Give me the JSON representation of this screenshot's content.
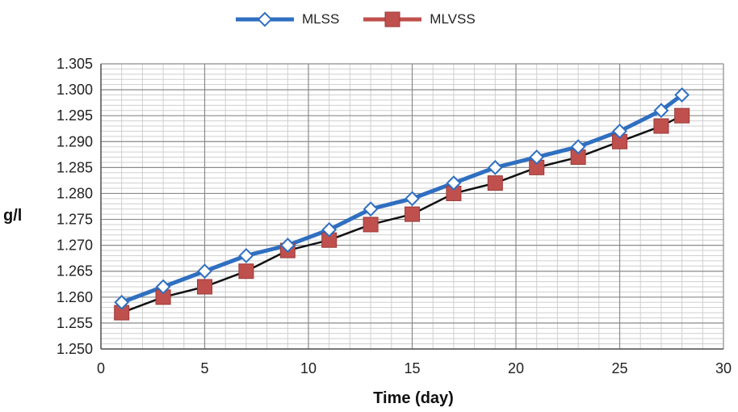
{
  "chart_data": {
    "type": "line",
    "xlabel": "Time (day)",
    "ylabel": "g/l",
    "xlim": [
      0,
      30
    ],
    "ylim": [
      1.25,
      1.305
    ],
    "xticks": [
      0,
      5,
      10,
      15,
      20,
      25,
      30
    ],
    "yticks": [
      1.25,
      1.255,
      1.26,
      1.265,
      1.27,
      1.275,
      1.28,
      1.285,
      1.29,
      1.295,
      1.3,
      1.305
    ],
    "ytick_labels": [
      "1.250",
      "1.255",
      "1.260",
      "1.265",
      "1.270",
      "1.275",
      "1.280",
      "1.285",
      "1.290",
      "1.295",
      "1.300",
      "1.305"
    ],
    "grid": true,
    "legend_position": "top-center",
    "x": [
      1,
      3,
      5,
      7,
      9,
      11,
      13,
      15,
      17,
      19,
      21,
      23,
      25,
      27,
      28
    ],
    "series": [
      {
        "name": "MLSS",
        "color": "#2f6fc1",
        "marker": "diamond-open",
        "values": [
          1.259,
          1.262,
          1.265,
          1.268,
          1.27,
          1.273,
          1.277,
          1.279,
          1.282,
          1.285,
          1.287,
          1.289,
          1.292,
          1.296,
          1.299
        ]
      },
      {
        "name": "MLVSS",
        "color": "#c0504d",
        "marker": "square",
        "line_color": "#111111",
        "values": [
          1.257,
          1.26,
          1.262,
          1.265,
          1.269,
          1.271,
          1.274,
          1.276,
          1.28,
          1.282,
          1.285,
          1.287,
          1.29,
          1.293,
          1.295
        ]
      }
    ]
  }
}
